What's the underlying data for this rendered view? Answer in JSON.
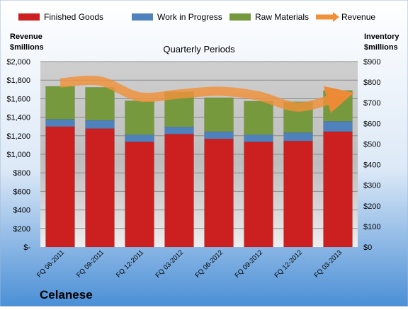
{
  "chart_data": {
    "type": "bar",
    "subtitle": "Quarterly Periods",
    "company": "Celanese",
    "left_axis_title": [
      "Revenue",
      "$millions"
    ],
    "right_axis_title": [
      "Inventory",
      "$millions"
    ],
    "categories": [
      "FQ 06-2011",
      "FQ 09-2011",
      "FQ 12-2011",
      "FQ 03-2012",
      "FQ 06-2012",
      "FQ 09-2012",
      "FQ 12-2012",
      "FQ 03-2013"
    ],
    "left_ylim": [
      0,
      2000
    ],
    "left_ticks": [
      0,
      200,
      400,
      600,
      800,
      1000,
      1200,
      1400,
      1600,
      1800,
      2000
    ],
    "left_tick_labels": [
      "$-",
      "$200",
      "$400",
      "$600",
      "$800",
      "$1,000",
      "$1,200",
      "$1,400",
      "$1,600",
      "$1,800",
      "$2,000"
    ],
    "right_ylim": [
      0,
      900
    ],
    "right_ticks": [
      0,
      100,
      200,
      300,
      400,
      500,
      600,
      700,
      800,
      900
    ],
    "right_tick_labels": [
      "$0",
      "$100",
      "$200",
      "$300",
      "$400",
      "$500",
      "$600",
      "$700",
      "$800",
      "$900"
    ],
    "series": [
      {
        "name": "Finished Goods",
        "color": "#cc1f1f",
        "axis": "right",
        "stack": true,
        "values": [
          585,
          575,
          510,
          548,
          525,
          510,
          515,
          560
        ]
      },
      {
        "name": "Work in Progress",
        "color": "#4f81bd",
        "axis": "right",
        "stack": true,
        "values": [
          35,
          40,
          35,
          35,
          35,
          35,
          40,
          50
        ]
      },
      {
        "name": "Raw Materials",
        "color": "#77993d",
        "axis": "right",
        "stack": true,
        "values": [
          160,
          160,
          165,
          170,
          165,
          163,
          150,
          150
        ]
      },
      {
        "name": "Revenue",
        "color": "#f0913a",
        "axis": "left",
        "type": "line",
        "values": [
          1770,
          1790,
          1620,
          1650,
          1680,
          1630,
          1510,
          1620
        ]
      }
    ],
    "legend": [
      "Finished Goods",
      "Work in Progress",
      "Raw Materials",
      "Revenue"
    ],
    "legend_position": "top",
    "grid": true
  }
}
